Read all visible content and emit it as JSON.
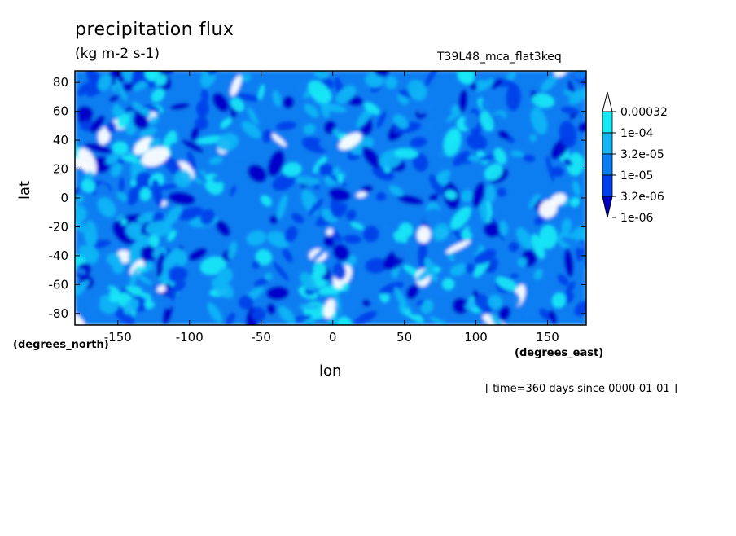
{
  "chart_data": {
    "type": "heatmap",
    "title": "precipitation flux",
    "units": "(kg m-2 s-1)",
    "run_id": "T39L48_mca_flat3keq",
    "xlabel": "lon",
    "ylabel": "lat",
    "x_unit_label": "(degrees_east)",
    "y_unit_label": "(degrees_north)",
    "timestamp": "[ time=360 days since 0000-01-01 ]",
    "xlim": [
      -180,
      177
    ],
    "ylim": [
      -88,
      88
    ],
    "x_ticks": [
      -150,
      -100,
      -50,
      0,
      50,
      100,
      150
    ],
    "x_tick_labels": [
      "-150",
      "-100",
      "-50",
      "0",
      "50",
      "100",
      "150"
    ],
    "y_ticks": [
      -80,
      -60,
      -40,
      -20,
      0,
      20,
      40,
      60,
      80
    ],
    "y_tick_labels": [
      "-80",
      "-60",
      "-40",
      "-20",
      "0",
      "20",
      "40",
      "60",
      "80"
    ],
    "colorbar": {
      "levels": [
        1e-06,
        3.2e-06,
        1e-05,
        3.2e-05,
        0.0001,
        0.00032
      ],
      "labels": [
        "1e-06",
        "3.2e-06",
        "1e-05",
        "3.2e-05",
        "1e-04",
        "0.00032"
      ],
      "colors": [
        "#0000c8",
        "#0040e8",
        "#0a7ef2",
        "#12b6f5",
        "#16e8f6",
        "#ffffff"
      ],
      "extend": "both"
    },
    "grid": false,
    "legend_position": "right"
  },
  "colors": {
    "background": "#ffffff",
    "low": "#0000c8",
    "mid": "#0a7ef2",
    "high": "#16e8f6",
    "extreme": "#ffffff"
  }
}
